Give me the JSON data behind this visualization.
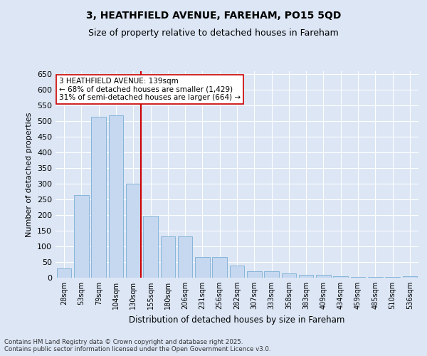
{
  "title": "3, HEATHFIELD AVENUE, FAREHAM, PO15 5QD",
  "subtitle": "Size of property relative to detached houses in Fareham",
  "xlabel": "Distribution of detached houses by size in Fareham",
  "ylabel": "Number of detached properties",
  "categories": [
    "28sqm",
    "53sqm",
    "79sqm",
    "104sqm",
    "130sqm",
    "155sqm",
    "180sqm",
    "206sqm",
    "231sqm",
    "256sqm",
    "282sqm",
    "307sqm",
    "333sqm",
    "358sqm",
    "383sqm",
    "409sqm",
    "434sqm",
    "459sqm",
    "485sqm",
    "510sqm",
    "536sqm"
  ],
  "values": [
    30,
    265,
    515,
    520,
    300,
    198,
    133,
    133,
    67,
    67,
    38,
    20,
    20,
    13,
    8,
    8,
    5,
    2,
    2,
    2,
    5
  ],
  "bar_color": "#c5d8f0",
  "bar_edge_color": "#7aadd4",
  "red_line_index": 4,
  "annotation_line1": "3 HEATHFIELD AVENUE: 139sqm",
  "annotation_line2": "← 68% of detached houses are smaller (1,429)",
  "annotation_line3": "31% of semi-detached houses are larger (664) →",
  "red_line_color": "#cc0000",
  "annotation_box_facecolor": "#ffffff",
  "annotation_box_edgecolor": "#cc0000",
  "background_color": "#dce6f5",
  "plot_background": "#dce6f5",
  "grid_color": "#ffffff",
  "ylim": [
    0,
    660
  ],
  "yticks": [
    0,
    50,
    100,
    150,
    200,
    250,
    300,
    350,
    400,
    450,
    500,
    550,
    600,
    650
  ],
  "footer1": "Contains HM Land Registry data © Crown copyright and database right 2025.",
  "footer2": "Contains public sector information licensed under the Open Government Licence v3.0."
}
